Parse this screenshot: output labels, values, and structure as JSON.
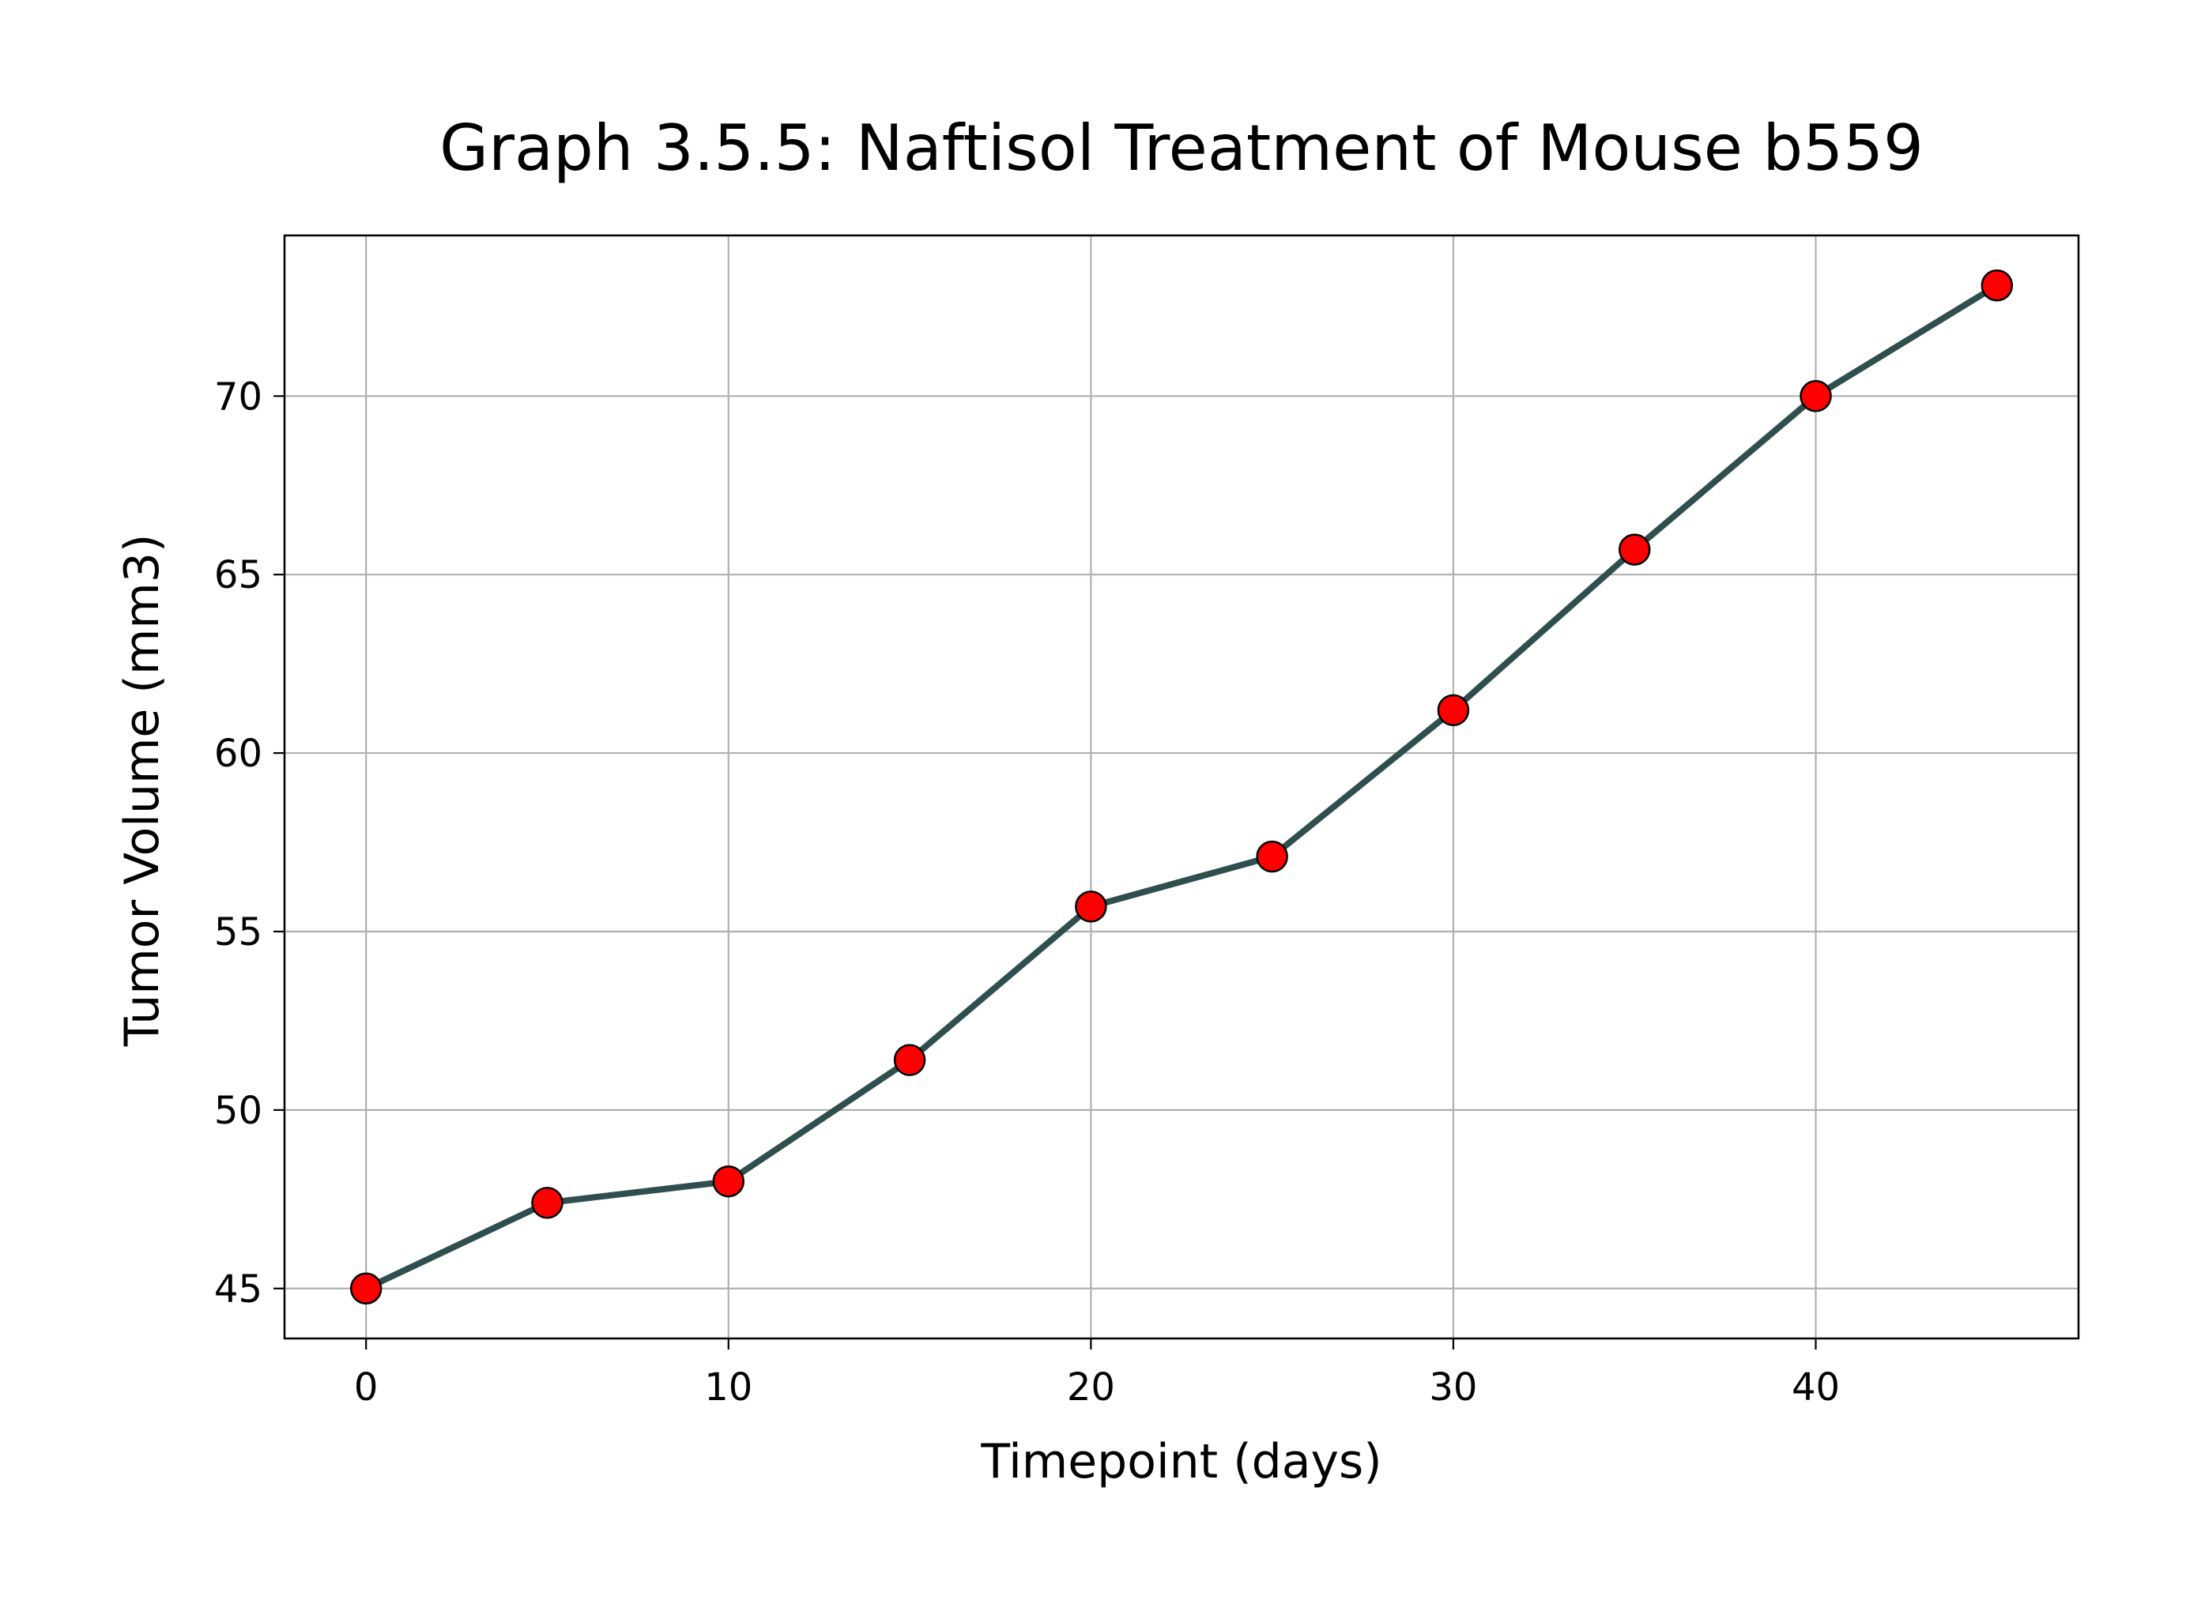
{
  "chart_data": {
    "type": "line",
    "title": "Graph 3.5.5: Naftisol Treatment of Mouse b559",
    "xlabel": "Timepoint (days)",
    "ylabel": "Tumor Volume (mm3)",
    "xlim": [
      -2.25,
      47.25
    ],
    "ylim": [
      43.6,
      74.5
    ],
    "x_ticks": [
      0,
      10,
      20,
      30,
      40
    ],
    "y_ticks": [
      45,
      50,
      55,
      60,
      65,
      70
    ],
    "grid": true,
    "line_color": "#2f4f4f",
    "marker_face_color": "#ff0000",
    "marker_edge_color": "#000000",
    "series": [
      {
        "x": [
          0,
          5,
          10,
          15,
          20,
          25,
          30,
          35,
          40,
          45
        ],
        "y": [
          45.0,
          47.4,
          48.0,
          51.4,
          55.7,
          57.1,
          61.2,
          65.7,
          70.0,
          73.1
        ]
      }
    ]
  }
}
